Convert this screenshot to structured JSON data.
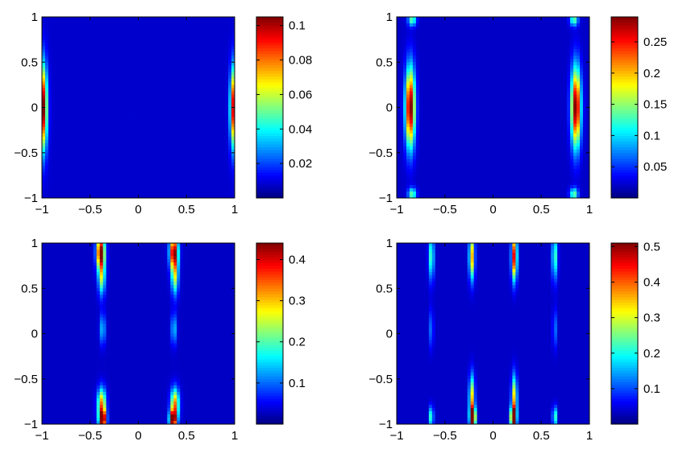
{
  "chart_data": [
    {
      "type": "heatmap",
      "title": "",
      "xlabel": "",
      "ylabel": "",
      "xlim": [
        -1,
        1
      ],
      "ylim": [
        -1,
        1
      ],
      "x_ticks": [
        "−1",
        "−0.5",
        "0",
        "0.5",
        "1"
      ],
      "y_ticks": [
        "1",
        "0.5",
        "0",
        "−0.5",
        "−1"
      ],
      "colorbar": {
        "min": 0,
        "max": 0.105,
        "tick_values": [
          0.02,
          0.04,
          0.06,
          0.08,
          0.1
        ],
        "tick_labels": [
          "0.02",
          "0.04",
          "0.06",
          "0.08",
          "0.1"
        ]
      },
      "background_value": 0.008,
      "features": [
        {
          "x": -0.99,
          "y": 0.0,
          "sx": 0.03,
          "sy": 0.32,
          "value": 0.1
        },
        {
          "x": 0.99,
          "y": 0.0,
          "sx": 0.025,
          "sy": 0.3,
          "value": 0.09
        }
      ]
    },
    {
      "type": "heatmap",
      "title": "",
      "xlabel": "",
      "ylabel": "",
      "xlim": [
        -1,
        1
      ],
      "ylim": [
        -1,
        1
      ],
      "x_ticks": [
        "−1",
        "−0.5",
        "0",
        "0.5",
        "1"
      ],
      "y_ticks": [
        "1",
        "0.5",
        "0",
        "−0.5",
        "−1"
      ],
      "colorbar": {
        "min": 0,
        "max": 0.29,
        "tick_values": [
          0.05,
          0.1,
          0.15,
          0.2,
          0.25
        ],
        "tick_labels": [
          "0.05",
          "0.1",
          "0.15",
          "0.2",
          "0.25"
        ]
      },
      "background_value": 0.02,
      "features": [
        {
          "x": -0.86,
          "y": 0.0,
          "sx": 0.035,
          "sy": 0.3,
          "value": 0.28
        },
        {
          "x": 0.86,
          "y": 0.0,
          "sx": 0.035,
          "sy": 0.3,
          "value": 0.28
        },
        {
          "x": -0.84,
          "y": 0.97,
          "sx": 0.03,
          "sy": 0.05,
          "value": 0.12
        },
        {
          "x": 0.84,
          "y": 0.97,
          "sx": 0.03,
          "sy": 0.05,
          "value": 0.12
        },
        {
          "x": -0.84,
          "y": -0.96,
          "sx": 0.03,
          "sy": 0.05,
          "value": 0.12
        },
        {
          "x": 0.84,
          "y": -0.96,
          "sx": 0.03,
          "sy": 0.05,
          "value": 0.12
        }
      ]
    },
    {
      "type": "heatmap",
      "title": "",
      "xlabel": "",
      "ylabel": "",
      "xlim": [
        -1,
        1
      ],
      "ylim": [
        -1,
        1
      ],
      "x_ticks": [
        "−1",
        "−0.5",
        "0",
        "0.5",
        "1"
      ],
      "y_ticks": [
        "1",
        "0.5",
        "0",
        "−0.5",
        "−1"
      ],
      "colorbar": {
        "min": 0,
        "max": 0.44,
        "tick_values": [
          0.1,
          0.2,
          0.3,
          0.4
        ],
        "tick_labels": [
          "0.1",
          "0.2",
          "0.3",
          "0.4"
        ]
      },
      "background_value": 0.03,
      "features": [
        {
          "x": -0.39,
          "y": 0.9,
          "sx": 0.03,
          "sy": 0.13,
          "value": 0.42
        },
        {
          "x": 0.37,
          "y": 0.9,
          "sx": 0.03,
          "sy": 0.13,
          "value": 0.42
        },
        {
          "x": -0.38,
          "y": 0.62,
          "sx": 0.025,
          "sy": 0.14,
          "value": 0.2
        },
        {
          "x": 0.38,
          "y": 0.62,
          "sx": 0.025,
          "sy": 0.14,
          "value": 0.2
        },
        {
          "x": -0.37,
          "y": 0.05,
          "sx": 0.02,
          "sy": 0.12,
          "value": 0.12
        },
        {
          "x": 0.37,
          "y": 0.05,
          "sx": 0.02,
          "sy": 0.12,
          "value": 0.12
        },
        {
          "x": -0.38,
          "y": -0.78,
          "sx": 0.03,
          "sy": 0.12,
          "value": 0.3
        },
        {
          "x": 0.38,
          "y": -0.78,
          "sx": 0.03,
          "sy": 0.12,
          "value": 0.3
        },
        {
          "x": -0.37,
          "y": -0.95,
          "sx": 0.025,
          "sy": 0.07,
          "value": 0.42
        },
        {
          "x": 0.36,
          "y": -0.95,
          "sx": 0.025,
          "sy": 0.07,
          "value": 0.42
        }
      ]
    },
    {
      "type": "heatmap",
      "title": "",
      "xlabel": "",
      "ylabel": "",
      "xlim": [
        -1,
        1
      ],
      "ylim": [
        -1,
        1
      ],
      "x_ticks": [
        "−1",
        "−0.5",
        "0",
        "0.5",
        "1"
      ],
      "y_ticks": [
        "1",
        "0.5",
        "0",
        "−0.5",
        "−1"
      ],
      "colorbar": {
        "min": 0,
        "max": 0.51,
        "tick_values": [
          0.1,
          0.2,
          0.3,
          0.4,
          0.5
        ],
        "tick_labels": [
          "0.1",
          "0.2",
          "0.3",
          "0.4",
          "0.5"
        ]
      },
      "background_value": 0.035,
      "features": [
        {
          "x": -0.64,
          "y": 0.85,
          "sx": 0.02,
          "sy": 0.18,
          "value": 0.2
        },
        {
          "x": -0.22,
          "y": 0.85,
          "sx": 0.02,
          "sy": 0.18,
          "value": 0.32
        },
        {
          "x": 0.22,
          "y": 0.85,
          "sx": 0.02,
          "sy": 0.18,
          "value": 0.42
        },
        {
          "x": 0.64,
          "y": 0.85,
          "sx": 0.02,
          "sy": 0.18,
          "value": 0.2
        },
        {
          "x": -0.64,
          "y": 0.05,
          "sx": 0.015,
          "sy": 0.15,
          "value": 0.1
        },
        {
          "x": 0.64,
          "y": 0.05,
          "sx": 0.015,
          "sy": 0.15,
          "value": 0.1
        },
        {
          "x": -0.22,
          "y": -0.72,
          "sx": 0.02,
          "sy": 0.18,
          "value": 0.3
        },
        {
          "x": 0.22,
          "y": -0.72,
          "sx": 0.02,
          "sy": 0.18,
          "value": 0.3
        },
        {
          "x": -0.21,
          "y": -0.93,
          "sx": 0.02,
          "sy": 0.08,
          "value": 0.5
        },
        {
          "x": 0.21,
          "y": -0.93,
          "sx": 0.02,
          "sy": 0.08,
          "value": 0.5
        },
        {
          "x": -0.64,
          "y": -0.92,
          "sx": 0.015,
          "sy": 0.08,
          "value": 0.22
        },
        {
          "x": 0.64,
          "y": -0.92,
          "sx": 0.015,
          "sy": 0.08,
          "value": 0.22
        }
      ]
    }
  ]
}
